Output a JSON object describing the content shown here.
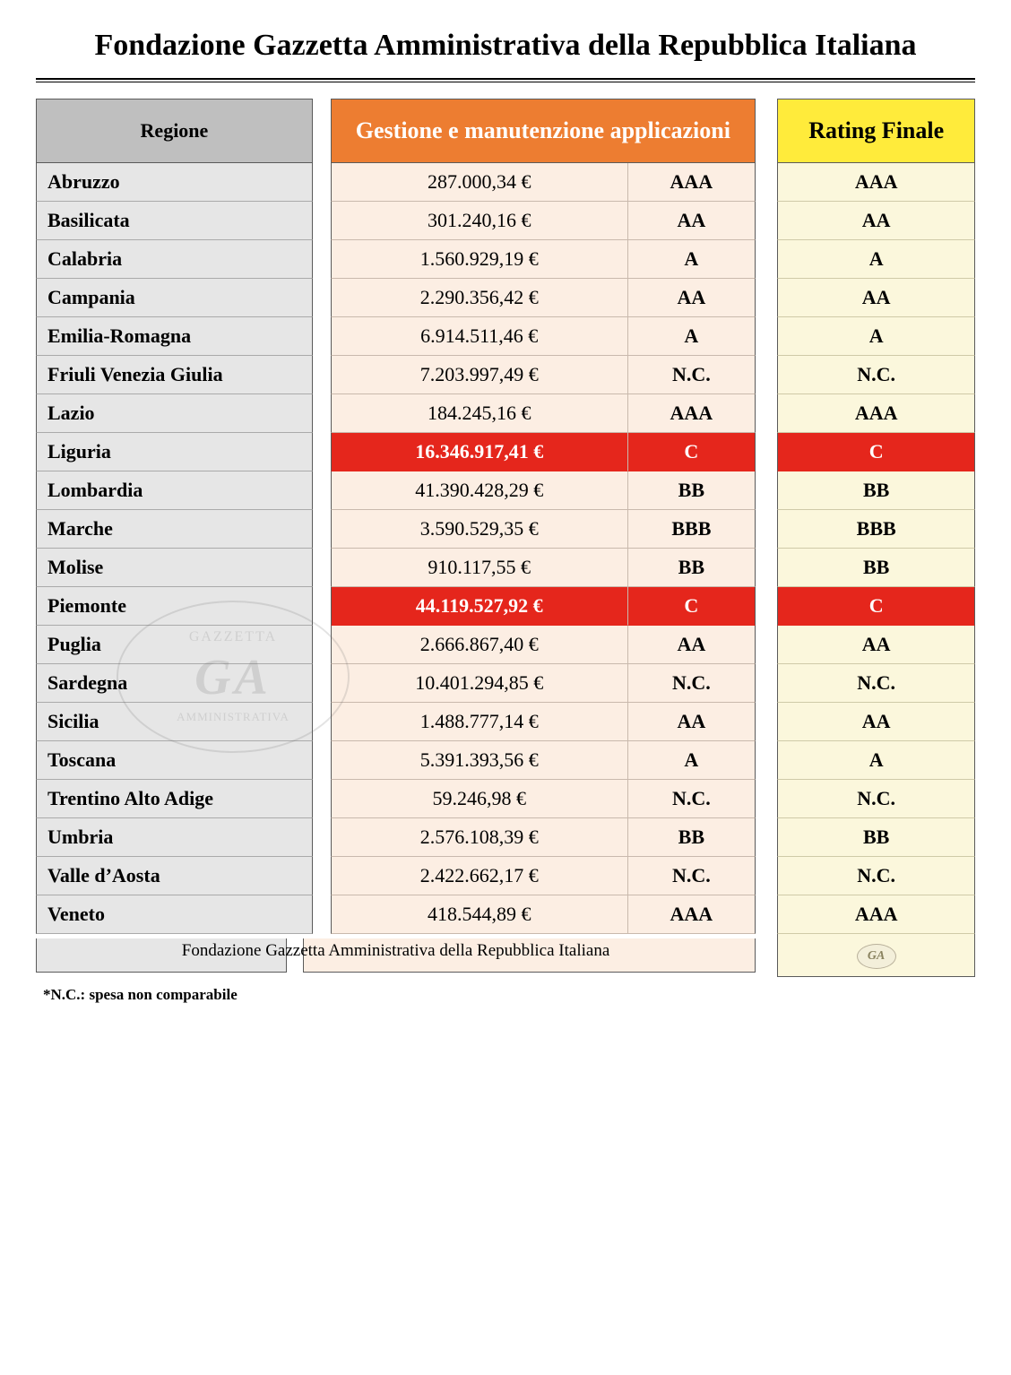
{
  "title": "Fondazione Gazzetta Amministrativa della Repubblica Italiana",
  "headers": {
    "region": "Regione",
    "gestione": "Gestione e manutenzione applicazioni",
    "rating": "Rating Finale"
  },
  "colors": {
    "header_region_bg": "#bfbfbf",
    "header_gestione_bg": "#ed7d31",
    "header_gestione_fg": "#ffffff",
    "header_rating_bg": "#ffeb3b",
    "region_col_bg": "#e6e6e6",
    "gestione_col_bg": "#fceee3",
    "rating_col_bg": "#fbf7dc",
    "highlight_bg": "#e5261c",
    "highlight_fg": "#ffffff",
    "border": "#5a5a5a"
  },
  "rows": [
    {
      "region": "Abruzzo",
      "amount": "287.000,34 €",
      "r1": "AAA",
      "r2": "AAA",
      "hl": false
    },
    {
      "region": "Basilicata",
      "amount": "301.240,16 €",
      "r1": "AA",
      "r2": "AA",
      "hl": false
    },
    {
      "region": "Calabria",
      "amount": "1.560.929,19 €",
      "r1": "A",
      "r2": "A",
      "hl": false
    },
    {
      "region": "Campania",
      "amount": "2.290.356,42 €",
      "r1": "AA",
      "r2": "AA",
      "hl": false
    },
    {
      "region": "Emilia-Romagna",
      "amount": "6.914.511,46 €",
      "r1": "A",
      "r2": "A",
      "hl": false
    },
    {
      "region": "Friuli Venezia Giulia",
      "amount": "7.203.997,49 €",
      "r1": "N.C.",
      "r2": "N.C.",
      "hl": false
    },
    {
      "region": "Lazio",
      "amount": "184.245,16 €",
      "r1": "AAA",
      "r2": "AAA",
      "hl": false
    },
    {
      "region": "Liguria",
      "amount": "16.346.917,41 €",
      "r1": "C",
      "r2": "C",
      "hl": true
    },
    {
      "region": "Lombardia",
      "amount": "41.390.428,29 €",
      "r1": "BB",
      "r2": "BB",
      "hl": false
    },
    {
      "region": "Marche",
      "amount": "3.590.529,35 €",
      "r1": "BBB",
      "r2": "BBB",
      "hl": false
    },
    {
      "region": "Molise",
      "amount": "910.117,55 €",
      "r1": "BB",
      "r2": "BB",
      "hl": false
    },
    {
      "region": "Piemonte",
      "amount": "44.119.527,92 €",
      "r1": "C",
      "r2": "C",
      "hl": true
    },
    {
      "region": "Puglia",
      "amount": "2.666.867,40 €",
      "r1": "AA",
      "r2": "AA",
      "hl": false
    },
    {
      "region": "Sardegna",
      "amount": "10.401.294,85 €",
      "r1": "N.C.",
      "r2": "N.C.",
      "hl": false
    },
    {
      "region": "Sicilia",
      "amount": "1.488.777,14 €",
      "r1": "AA",
      "r2": "AA",
      "hl": false
    },
    {
      "region": "Toscana",
      "amount": "5.391.393,56 €",
      "r1": "A",
      "r2": "A",
      "hl": false
    },
    {
      "region": "Trentino Alto Adige",
      "amount": "59.246,98 €",
      "r1": "N.C.",
      "r2": "N.C.",
      "hl": false
    },
    {
      "region": "Umbria",
      "amount": "2.576.108,39 €",
      "r1": "BB",
      "r2": "BB",
      "hl": false
    },
    {
      "region": "Valle d’Aosta",
      "amount": "2.422.662,17 €",
      "r1": "N.C.",
      "r2": "N.C.",
      "hl": false
    },
    {
      "region": "Veneto",
      "amount": "418.544,89 €",
      "r1": "AAA",
      "r2": "AAA",
      "hl": false
    }
  ],
  "footer_caption": "Fondazione Gazzetta Amministrativa della Repubblica Italiana",
  "footer_badge": "GA",
  "watermark": {
    "top": "GAZZETTA",
    "mid": "GA",
    "bot": "AMMINISTRATIVA"
  },
  "note": "*N.C.: spesa non comparabile"
}
